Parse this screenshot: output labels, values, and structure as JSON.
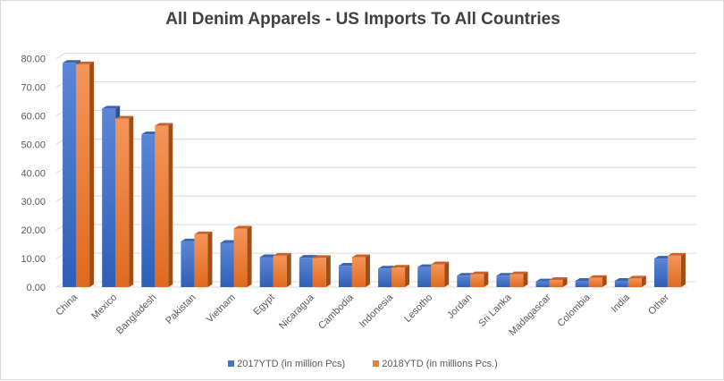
{
  "chart_data": {
    "type": "bar",
    "title": "All Denim Apparels - US Imports To All Countries",
    "categories": [
      "China",
      "Mexico",
      "Bangladesh",
      "Pakistan",
      "Vietnam",
      "Egypt",
      "Nicaragua",
      "Cambodia",
      "Indonesia",
      "Lesotho",
      "Jordan",
      "Sri Lanka",
      "Madagascar",
      "Colombia",
      "India",
      "Other"
    ],
    "series": [
      {
        "name": "2017YTD  (in million Pcs)",
        "color": "#4472c4",
        "values": [
          78.5,
          62.5,
          53.5,
          16,
          15.5,
          10.5,
          10.3,
          7.5,
          6.5,
          7,
          4,
          4,
          2,
          2.2,
          2.2,
          10
        ]
      },
      {
        "name": "2018YTD  (in millions Pcs.)",
        "color": "#ed7d31",
        "values": [
          78,
          59,
          56.5,
          18.5,
          20.5,
          11,
          10.2,
          10.5,
          6.8,
          8,
          4.5,
          4.5,
          2.5,
          3.2,
          3,
          11
        ]
      }
    ],
    "yticks": [
      "0.00",
      "10.00",
      "20.00",
      "30.00",
      "40.00",
      "50.00",
      "60.00",
      "70.00",
      "80.00"
    ],
    "ylim": [
      0,
      80
    ],
    "grid": true,
    "legend": "bottom"
  }
}
